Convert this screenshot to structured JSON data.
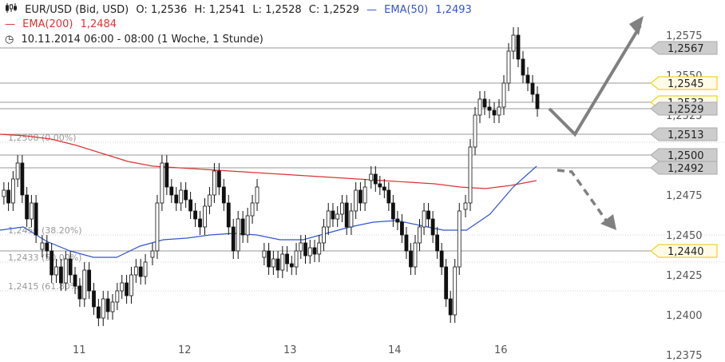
{
  "header": {
    "symbol_icon": "candlestick-icon",
    "symbol": "EUR/USD (Bid, USD)",
    "open": "O: 1,2536",
    "high": "H: 1,2541",
    "low": "L: 1,2528",
    "close": "C: 1,2529",
    "ema50_label": "EMA(50)",
    "ema50_value": "1,2493",
    "ema200_label": "EMA(200)",
    "ema200_value": "1,2484",
    "clock_icon": "clock-icon",
    "period": "10.11.2014 06:00 - 08:00 (1 Woche, 1 Stunde)"
  },
  "colors": {
    "ema50": "#3355cc",
    "ema200": "#dd3333",
    "candle": "#111111",
    "level_line": "#999999",
    "gray_tag": "#cccccc",
    "yellow_tag": "#f2c300",
    "arrow": "#808080"
  },
  "chart_data": {
    "type": "candlestick",
    "ylim": [
      1.2375,
      1.2585
    ],
    "y_ticks": [
      "1,2375",
      "1,2400",
      "1,2425",
      "1,2450",
      "1,2475",
      "1,2500",
      "1,2525",
      "1,2550",
      "1,2575"
    ],
    "x_ticks": [
      "11",
      "12",
      "13",
      "14",
      "16"
    ],
    "horizontal_levels": [
      {
        "value": 1.2567,
        "label": "1,2567",
        "style": "gray"
      },
      {
        "value": 1.2545,
        "label": "1,2545",
        "style": "yellow"
      },
      {
        "value": 1.2533,
        "label": "1,2533",
        "style": "yellow"
      },
      {
        "value": 1.2529,
        "label": "1,2529",
        "style": "gray"
      },
      {
        "value": 1.2513,
        "label": "1,2513",
        "style": "gray"
      },
      {
        "value": 1.25,
        "label": "1,2500",
        "style": "gray"
      },
      {
        "value": 1.2492,
        "label": "1,2492",
        "style": "gray"
      },
      {
        "value": 1.244,
        "label": "1,2440",
        "style": "yellow"
      }
    ],
    "fib_levels": [
      {
        "value": 1.2508,
        "label": "1,2508 (0.00%)"
      },
      {
        "value": 1.245,
        "label": "1,2450 (38.20%)"
      },
      {
        "value": 1.2433,
        "label": "1,2433 (50.00%)"
      },
      {
        "value": 1.2415,
        "label": "1,2415 (61.80%)"
      }
    ],
    "ema200": [
      1.2513,
      1.2512,
      1.251,
      1.2506,
      1.2501,
      1.2496,
      1.2493,
      1.2492,
      1.2491,
      1.249,
      1.2489,
      1.2488,
      1.2487,
      1.2486,
      1.2485,
      1.2484,
      1.2483,
      1.2482,
      1.248,
      1.2479,
      1.2481,
      1.2484
    ],
    "ema50": [
      1.2453,
      1.2455,
      1.2446,
      1.244,
      1.2436,
      1.2436,
      1.2443,
      1.2447,
      1.2448,
      1.245,
      1.2451,
      1.245,
      1.2447,
      1.2447,
      1.2451,
      1.2455,
      1.2458,
      1.2459,
      1.2456,
      1.2453,
      1.2453,
      1.2463,
      1.248,
      1.2493
    ],
    "candles_summary": [
      {
        "day": "10",
        "range": [
          1.244,
          1.25
        ]
      },
      {
        "day": "11",
        "range": [
          1.2393,
          1.2444
        ]
      },
      {
        "day": "12",
        "range": [
          1.244,
          1.25
        ]
      },
      {
        "day": "13",
        "range": [
          1.2427,
          1.2498
        ]
      },
      {
        "day": "14",
        "range": [
          1.2398,
          1.247
        ]
      },
      {
        "day": "16",
        "range": [
          1.25,
          1.258
        ]
      }
    ],
    "forecast_arrows": [
      {
        "style": "solid",
        "path": "down-then-up",
        "from": 1.2529,
        "via": 1.2513,
        "to": 1.2585
      },
      {
        "style": "dashed",
        "path": "down",
        "from": 1.2492,
        "to": 1.2455
      }
    ]
  }
}
